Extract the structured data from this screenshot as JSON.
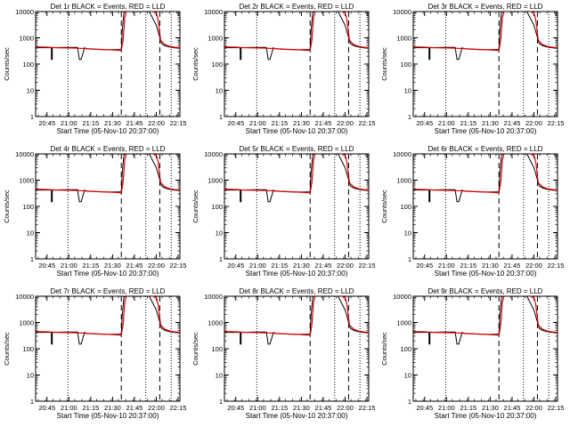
{
  "x_title": "Start Time (05-Nov-10 20:37:00)",
  "y_title": "Counts/sec",
  "colors": {
    "events": "#000000",
    "lld": "#e00000",
    "markers": "#000000"
  },
  "chart_data": [
    {
      "type": "line",
      "title": "Det 1r BLACK = Events, RED = LLD"
    },
    {
      "type": "line",
      "title": "Det 2r BLACK = Events, RED = LLD"
    },
    {
      "type": "line",
      "title": "Det 3r BLACK = Events, RED = LLD"
    },
    {
      "type": "line",
      "title": "Det 4r BLACK = Events, RED = LLD"
    },
    {
      "type": "line",
      "title": "Det 5r BLACK = Events, RED = LLD"
    },
    {
      "type": "line",
      "title": "Det 6r BLACK = Events, RED = LLD"
    },
    {
      "type": "line",
      "title": "Det 7r BLACK = Events, RED = LLD"
    },
    {
      "type": "line",
      "title": "Det 8r BLACK = Events, RED = LLD"
    },
    {
      "type": "line",
      "title": "Det 9r BLACK = Events, RED = LLD"
    }
  ],
  "axes": {
    "x_range_min": [
      20.62,
      22.27
    ],
    "x_ticks_min": [
      20.75,
      21.0,
      21.25,
      21.5,
      21.75,
      22.0,
      22.25
    ],
    "x_tick_labels": [
      "20:45",
      "21:00",
      "21:15",
      "21:30",
      "21:45",
      "22:00",
      "22:15"
    ],
    "y_scale": "log",
    "y_range": [
      1,
      10000
    ],
    "y_ticks": [
      1,
      10,
      100,
      1000,
      10000
    ],
    "y_tick_labels": [
      "1",
      "10",
      "100",
      "1000",
      "10000"
    ]
  },
  "markers": {
    "dotted_min": [
      20.99,
      21.88,
      22.17
    ],
    "dashed_min": [
      21.6,
      22.04
    ]
  },
  "series_common": {
    "events": {
      "x": [
        20.62,
        20.8,
        20.8,
        20.81,
        20.81,
        20.95,
        21.1,
        21.12,
        21.14,
        21.18,
        21.2,
        21.35,
        21.45,
        21.6,
        21.61,
        21.63,
        21.66,
        21.75,
        21.78,
        21.81,
        21.84,
        21.87,
        21.92,
        22.0,
        22.06,
        22.1,
        22.15,
        22.2,
        22.27
      ],
      "y": [
        420,
        420,
        150,
        150,
        420,
        430,
        430,
        150,
        150,
        420,
        380,
        360,
        350,
        360,
        1800,
        9500,
        10500,
        10500,
        9800,
        10500,
        11000,
        10500,
        10000,
        3000,
        600,
        500,
        450,
        420,
        400
      ]
    },
    "lld": {
      "x": [
        20.62,
        20.75,
        20.85,
        21.0,
        21.1,
        21.2,
        21.3,
        21.45,
        21.6,
        21.62,
        21.64,
        21.66,
        21.72,
        21.75,
        21.8,
        21.85,
        21.9,
        21.95,
        22.0,
        22.02,
        22.05,
        22.1,
        22.15,
        22.2,
        22.27
      ],
      "y": [
        450,
        440,
        420,
        410,
        400,
        390,
        370,
        350,
        330,
        800,
        6000,
        10500,
        11000,
        10500,
        10500,
        11000,
        10800,
        10200,
        9000,
        5000,
        800,
        550,
        480,
        440,
        420
      ]
    }
  }
}
